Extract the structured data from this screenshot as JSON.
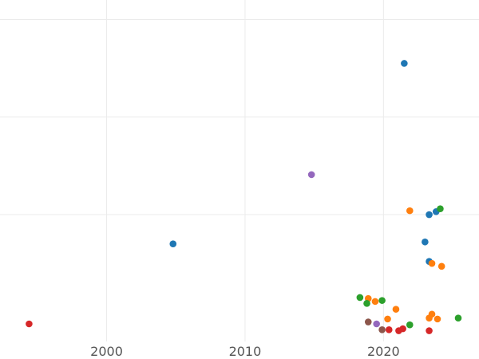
{
  "chart_data": {
    "type": "scatter",
    "title": "",
    "xlabel": "",
    "ylabel": "",
    "grid": true,
    "legend": "none",
    "xlim": [
      1992.3,
      2026.9
    ],
    "ylim": [
      -0.3,
      3.2
    ],
    "x_ticks": [
      {
        "value": 2000,
        "label": "2000"
      },
      {
        "value": 2010,
        "label": "2010"
      },
      {
        "value": 2020,
        "label": "2020"
      }
    ],
    "y_gridlines": [
      1,
      2,
      3
    ],
    "series": [
      {
        "name": "blue",
        "color": "#1f77b4",
        "points": [
          {
            "x": 2021.5,
            "y": 2.55
          },
          {
            "x": 2004.8,
            "y": 0.7
          },
          {
            "x": 2023.0,
            "y": 0.72
          },
          {
            "x": 2023.3,
            "y": 0.52
          },
          {
            "x": 2023.3,
            "y": 1.0
          },
          {
            "x": 2023.8,
            "y": 1.03
          }
        ]
      },
      {
        "name": "orange",
        "color": "#ff7f0e",
        "points": [
          {
            "x": 2021.9,
            "y": 1.04
          },
          {
            "x": 2023.5,
            "y": 0.5
          },
          {
            "x": 2024.2,
            "y": 0.47
          },
          {
            "x": 2018.9,
            "y": 0.14
          },
          {
            "x": 2019.4,
            "y": 0.11
          },
          {
            "x": 2020.9,
            "y": 0.03
          },
          {
            "x": 2020.3,
            "y": -0.07
          },
          {
            "x": 2023.5,
            "y": -0.02
          },
          {
            "x": 2023.3,
            "y": -0.06
          },
          {
            "x": 2023.9,
            "y": -0.07
          }
        ]
      },
      {
        "name": "green",
        "color": "#2ca02c",
        "points": [
          {
            "x": 2024.1,
            "y": 1.06
          },
          {
            "x": 2018.3,
            "y": 0.15
          },
          {
            "x": 2018.8,
            "y": 0.09
          },
          {
            "x": 2019.9,
            "y": 0.12
          },
          {
            "x": 2021.9,
            "y": -0.13
          },
          {
            "x": 2025.4,
            "y": -0.06
          }
        ]
      },
      {
        "name": "red",
        "color": "#d62728",
        "points": [
          {
            "x": 1994.4,
            "y": -0.12
          },
          {
            "x": 2020.4,
            "y": -0.18
          },
          {
            "x": 2021.1,
            "y": -0.19
          },
          {
            "x": 2021.4,
            "y": -0.17
          },
          {
            "x": 2023.3,
            "y": -0.19
          }
        ]
      },
      {
        "name": "purple",
        "color": "#9467bd",
        "points": [
          {
            "x": 2014.8,
            "y": 1.41
          },
          {
            "x": 2019.5,
            "y": -0.12
          }
        ]
      },
      {
        "name": "brown",
        "color": "#8c564b",
        "points": [
          {
            "x": 2018.9,
            "y": -0.1
          },
          {
            "x": 2019.9,
            "y": -0.18
          }
        ]
      }
    ]
  }
}
